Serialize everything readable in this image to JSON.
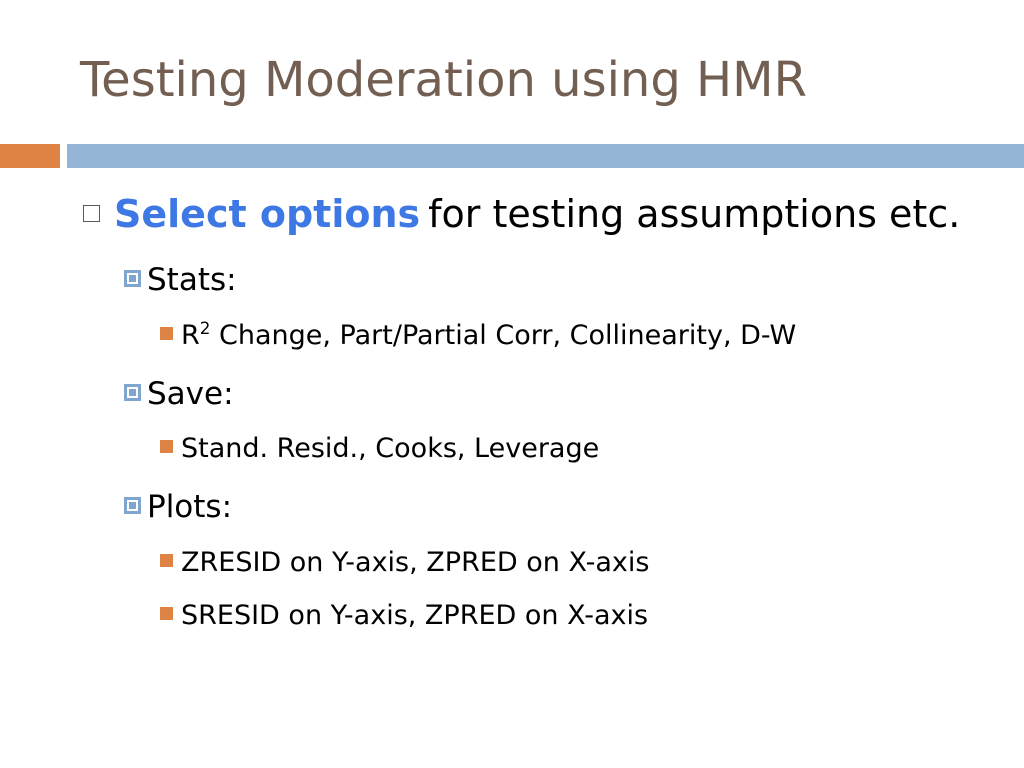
{
  "slide": {
    "title": "Testing Moderation using HMR",
    "bullet1": {
      "highlight": "Select options",
      "rest": "for testing assumptions etc."
    },
    "stats": {
      "label": "Stats:",
      "items": [
        {
          "prefix": "R",
          "sup": "2",
          "text": " Change, Part/Partial Corr, Collinearity, D-W"
        }
      ]
    },
    "save": {
      "label": "Save:",
      "items": [
        "Stand. Resid., Cooks, Leverage"
      ]
    },
    "plots": {
      "label": "Plots:",
      "items": [
        "ZRESID on Y-axis, ZPRED on X-axis",
        "SRESID on Y-axis, ZPRED on X-axis"
      ]
    }
  },
  "colors": {
    "title": "#725f51",
    "accent_orange": "#de8344",
    "accent_blue": "#94b5d6",
    "highlight_blue": "#3e78e4"
  }
}
